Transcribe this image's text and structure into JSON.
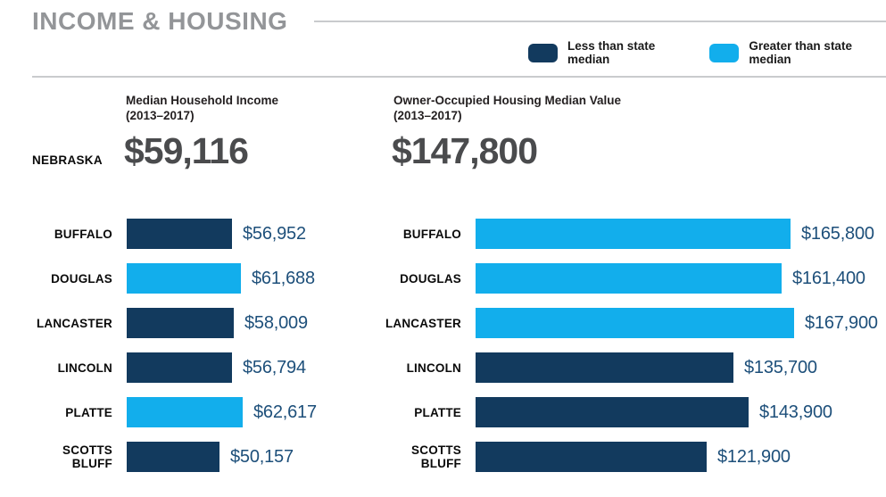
{
  "title": "INCOME & HOUSING",
  "legend": {
    "position": "top-right",
    "items": [
      {
        "key": "less",
        "label": "Less than state median",
        "color": "#123a5e"
      },
      {
        "key": "greater",
        "label": "Greater than state median",
        "color": "#12aeec"
      }
    ]
  },
  "state": {
    "name": "NEBRASKA"
  },
  "colors": {
    "less_than_median": "#123a5e",
    "greater_than_median": "#12aeec",
    "value_label_text": "#1d4f7a",
    "title_text": "#939598",
    "big_number_text": "#4a4b4d"
  },
  "chart_data": [
    {
      "type": "bar",
      "orientation": "horizontal",
      "title": "Median Household Income",
      "subtitle": "(2013–2017)",
      "state_value": 59116,
      "state_value_label": "$59,116",
      "categories": [
        "BUFFALO",
        "DOUGLAS",
        "LANCASTER",
        "LINCOLN",
        "PLATTE",
        "SCOTTS BLUFF"
      ],
      "values": [
        56952,
        61688,
        58009,
        56794,
        62617,
        50157
      ],
      "value_labels": [
        "$56,952",
        "$61,688",
        "$58,009",
        "$56,794",
        "$62,617",
        "$50,157"
      ],
      "vs_state_median": [
        "less",
        "greater",
        "less",
        "less",
        "greater",
        "less"
      ],
      "xlim": [
        0,
        62617
      ],
      "grid": false,
      "value_label_position": "right-of-bar"
    },
    {
      "type": "bar",
      "orientation": "horizontal",
      "title": "Owner-Occupied Housing Median Value",
      "subtitle": "(2013–2017)",
      "state_value": 147800,
      "state_value_label": "$147,800",
      "categories": [
        "BUFFALO",
        "DOUGLAS",
        "LANCASTER",
        "LINCOLN",
        "PLATTE",
        "SCOTTS BLUFF"
      ],
      "values": [
        165800,
        161400,
        167900,
        135700,
        143900,
        121900
      ],
      "value_labels": [
        "$165,800",
        "$161,400",
        "$167,900",
        "$135,700",
        "$143,900",
        "$121,900"
      ],
      "vs_state_median": [
        "greater",
        "greater",
        "greater",
        "less",
        "less",
        "less"
      ],
      "xlim": [
        0,
        167900
      ],
      "grid": false,
      "value_label_position": "right-of-bar"
    }
  ]
}
